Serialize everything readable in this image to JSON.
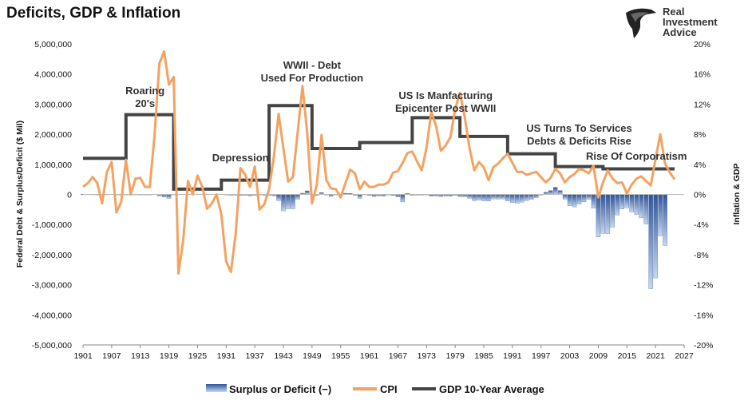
{
  "title": "Deficits, GDP & Inflation",
  "brand": {
    "lines": [
      "Real",
      "Investment",
      "Advice"
    ]
  },
  "chart_data": {
    "type": "combo",
    "ylabel_left": "Federal Debt & Surplus/Deficit ($ Mil)",
    "ylabel_right": "Inflation & GDP",
    "ylim_left": [
      -5000000,
      5000000
    ],
    "ylim_right": [
      -20,
      20
    ],
    "xlim": [
      1901,
      2027
    ],
    "x_ticks": [
      "1901",
      "1907",
      "1913",
      "1919",
      "1925",
      "1931",
      "1937",
      "1943",
      "1949",
      "1955",
      "1961",
      "1967",
      "1973",
      "1979",
      "1985",
      "1991",
      "1997",
      "2003",
      "2009",
      "2015",
      "2021",
      "2027"
    ],
    "y_left_ticks": [
      "5,000,000",
      "4,000,000",
      "3,000,000",
      "2,000,000",
      "1,000,000",
      "0",
      "-1,000,000",
      "-2,000,000",
      "-3,000,000",
      "-4,000,000",
      "-5,000,000"
    ],
    "y_right_ticks": [
      "20%",
      "16%",
      "12%",
      "8%",
      "4%",
      "0%",
      "-4%",
      "-8%",
      "-12%",
      "-16%",
      "-20%"
    ],
    "grid": false,
    "legend_position": "bottom",
    "series": [
      {
        "name": "Surplus or Deficit (−)",
        "kind": "bar",
        "axis": "left",
        "color": "#4a6fa5",
        "points": [
          [
            1901,
            5000
          ],
          [
            1902,
            5000
          ],
          [
            1903,
            4000
          ],
          [
            1904,
            -5000
          ],
          [
            1905,
            -2000
          ],
          [
            1906,
            2000
          ],
          [
            1907,
            8000
          ],
          [
            1908,
            -6000
          ],
          [
            1909,
            -9000
          ],
          [
            1910,
            -2000
          ],
          [
            1911,
            2000
          ],
          [
            1912,
            2000
          ],
          [
            1913,
            -1000
          ],
          [
            1914,
            -1000
          ],
          [
            1915,
            -6000
          ],
          [
            1916,
            5000
          ],
          [
            1917,
            -50000
          ],
          [
            1918,
            -90000
          ],
          [
            1919,
            -130000
          ],
          [
            1920,
            3000
          ],
          [
            1921,
            5000
          ],
          [
            1922,
            7000
          ],
          [
            1923,
            7000
          ],
          [
            1924,
            9000
          ],
          [
            1925,
            7000
          ],
          [
            1926,
            9000
          ],
          [
            1927,
            12000
          ],
          [
            1928,
            9000
          ],
          [
            1929,
            7000
          ],
          [
            1930,
            7000
          ],
          [
            1931,
            -5000
          ],
          [
            1932,
            -27000
          ],
          [
            1933,
            -26000
          ],
          [
            1934,
            -36000
          ],
          [
            1935,
            -28000
          ],
          [
            1936,
            -44000
          ],
          [
            1937,
            -28000
          ],
          [
            1938,
            -1000
          ],
          [
            1939,
            -28000
          ],
          [
            1940,
            -29000
          ],
          [
            1941,
            -49000
          ],
          [
            1942,
            -205000
          ],
          [
            1943,
            -546000
          ],
          [
            1944,
            -477000
          ],
          [
            1945,
            -477000
          ],
          [
            1946,
            -159000
          ],
          [
            1947,
            40000
          ],
          [
            1948,
            118000
          ],
          [
            1949,
            6000
          ],
          [
            1950,
            -31000
          ],
          [
            1951,
            61000
          ],
          [
            1952,
            -15000
          ],
          [
            1953,
            -65000
          ],
          [
            1954,
            -12000
          ],
          [
            1955,
            -30000
          ],
          [
            1956,
            39000
          ],
          [
            1957,
            34000
          ],
          [
            1958,
            -28000
          ],
          [
            1959,
            -128000
          ],
          [
            1960,
            3000
          ],
          [
            1961,
            -33000
          ],
          [
            1962,
            -71000
          ],
          [
            1963,
            -48000
          ],
          [
            1964,
            -59000
          ],
          [
            1965,
            -14000
          ],
          [
            1966,
            -37000
          ],
          [
            1967,
            -86000
          ],
          [
            1968,
            -250000
          ],
          [
            1969,
            32000
          ],
          [
            1970,
            -28000
          ],
          [
            1971,
            -23000
          ],
          [
            1972,
            -23000
          ],
          [
            1973,
            -14000
          ],
          [
            1974,
            -60000
          ],
          [
            1975,
            -53000
          ],
          [
            1976,
            -73000
          ],
          [
            1977,
            -54000
          ],
          [
            1978,
            -59000
          ],
          [
            1979,
            -30000
          ],
          [
            1980,
            -74000
          ],
          [
            1981,
            -79000
          ],
          [
            1982,
            -128000
          ],
          [
            1983,
            -208000
          ],
          [
            1984,
            -185000
          ],
          [
            1985,
            -212000
          ],
          [
            1986,
            -221000
          ],
          [
            1987,
            -150000
          ],
          [
            1988,
            -155000
          ],
          [
            1989,
            -153000
          ],
          [
            1990,
            -221000
          ],
          [
            1991,
            -269000
          ],
          [
            1992,
            -290000
          ],
          [
            1993,
            -255000
          ],
          [
            1994,
            -203000
          ],
          [
            1995,
            -164000
          ],
          [
            1996,
            -107000
          ],
          [
            1997,
            -22000
          ],
          [
            1998,
            69000
          ],
          [
            1999,
            126000
          ],
          [
            2000,
            236000
          ],
          [
            2001,
            128000
          ],
          [
            2002,
            -158000
          ],
          [
            2003,
            -378000
          ],
          [
            2004,
            -413000
          ],
          [
            2005,
            -318000
          ],
          [
            2006,
            -248000
          ],
          [
            2007,
            -161000
          ],
          [
            2008,
            -459000
          ],
          [
            2009,
            -1413000
          ],
          [
            2010,
            -1294000
          ],
          [
            2011,
            -1300000
          ],
          [
            2012,
            -1087000
          ],
          [
            2013,
            -680000
          ],
          [
            2014,
            -485000
          ],
          [
            2015,
            -442000
          ],
          [
            2016,
            -585000
          ],
          [
            2017,
            -665000
          ],
          [
            2018,
            -779000
          ],
          [
            2019,
            -984000
          ],
          [
            2020,
            -3132000
          ],
          [
            2021,
            -2775000
          ],
          [
            2022,
            -1375000
          ],
          [
            2023,
            -1695000
          ]
        ]
      },
      {
        "name": "CPI",
        "kind": "line",
        "axis": "right",
        "color": "#f4a261",
        "points": [
          [
            1901,
            1.0
          ],
          [
            1902,
            1.5
          ],
          [
            1903,
            2.3
          ],
          [
            1904,
            1.5
          ],
          [
            1905,
            -1.2
          ],
          [
            1906,
            3.0
          ],
          [
            1907,
            4.3
          ],
          [
            1908,
            -2.4
          ],
          [
            1909,
            -1.0
          ],
          [
            1910,
            4.6
          ],
          [
            1911,
            0.0
          ],
          [
            1912,
            2.1
          ],
          [
            1913,
            2.2
          ],
          [
            1914,
            1.0
          ],
          [
            1915,
            1.0
          ],
          [
            1916,
            7.9
          ],
          [
            1917,
            17.4
          ],
          [
            1918,
            19.0
          ],
          [
            1919,
            14.6
          ],
          [
            1920,
            15.6
          ],
          [
            1921,
            -10.5
          ],
          [
            1922,
            -6.1
          ],
          [
            1923,
            1.8
          ],
          [
            1924,
            0.0
          ],
          [
            1925,
            2.5
          ],
          [
            1926,
            1.0
          ],
          [
            1927,
            -1.9
          ],
          [
            1928,
            -1.2
          ],
          [
            1929,
            0.0
          ],
          [
            1930,
            -2.7
          ],
          [
            1931,
            -8.9
          ],
          [
            1932,
            -10.3
          ],
          [
            1933,
            -5.2
          ],
          [
            1934,
            3.5
          ],
          [
            1935,
            2.6
          ],
          [
            1936,
            1.0
          ],
          [
            1937,
            3.7
          ],
          [
            1938,
            -2.0
          ],
          [
            1939,
            -1.3
          ],
          [
            1940,
            0.7
          ],
          [
            1941,
            5.0
          ],
          [
            1942,
            10.7
          ],
          [
            1943,
            6.1
          ],
          [
            1944,
            1.7
          ],
          [
            1945,
            2.3
          ],
          [
            1946,
            8.3
          ],
          [
            1947,
            14.4
          ],
          [
            1948,
            8.1
          ],
          [
            1949,
            -1.2
          ],
          [
            1950,
            1.3
          ],
          [
            1951,
            7.9
          ],
          [
            1952,
            1.9
          ],
          [
            1953,
            0.8
          ],
          [
            1954,
            0.7
          ],
          [
            1955,
            -0.4
          ],
          [
            1956,
            1.5
          ],
          [
            1957,
            3.3
          ],
          [
            1958,
            2.8
          ],
          [
            1959,
            0.7
          ],
          [
            1960,
            1.7
          ],
          [
            1961,
            1.0
          ],
          [
            1962,
            1.0
          ],
          [
            1963,
            1.3
          ],
          [
            1964,
            1.3
          ],
          [
            1965,
            1.6
          ],
          [
            1966,
            2.9
          ],
          [
            1967,
            3.1
          ],
          [
            1968,
            4.2
          ],
          [
            1969,
            5.5
          ],
          [
            1970,
            5.7
          ],
          [
            1971,
            4.4
          ],
          [
            1972,
            3.2
          ],
          [
            1973,
            6.2
          ],
          [
            1974,
            11.0
          ],
          [
            1975,
            9.1
          ],
          [
            1976,
            5.8
          ],
          [
            1977,
            6.5
          ],
          [
            1978,
            7.6
          ],
          [
            1979,
            11.3
          ],
          [
            1980,
            13.5
          ],
          [
            1981,
            10.3
          ],
          [
            1982,
            6.2
          ],
          [
            1983,
            3.2
          ],
          [
            1984,
            4.3
          ],
          [
            1985,
            3.6
          ],
          [
            1986,
            1.9
          ],
          [
            1987,
            3.6
          ],
          [
            1988,
            4.1
          ],
          [
            1989,
            4.8
          ],
          [
            1990,
            5.4
          ],
          [
            1991,
            4.2
          ],
          [
            1992,
            3.0
          ],
          [
            1993,
            3.0
          ],
          [
            1994,
            2.6
          ],
          [
            1995,
            2.8
          ],
          [
            1996,
            3.0
          ],
          [
            1997,
            2.3
          ],
          [
            1998,
            1.6
          ],
          [
            1999,
            2.2
          ],
          [
            2000,
            3.4
          ],
          [
            2001,
            2.8
          ],
          [
            2002,
            1.6
          ],
          [
            2003,
            2.3
          ],
          [
            2004,
            2.7
          ],
          [
            2005,
            3.4
          ],
          [
            2006,
            3.2
          ],
          [
            2007,
            2.8
          ],
          [
            2008,
            3.8
          ],
          [
            2009,
            -0.4
          ],
          [
            2010,
            1.6
          ],
          [
            2011,
            3.2
          ],
          [
            2012,
            2.1
          ],
          [
            2013,
            1.5
          ],
          [
            2014,
            1.6
          ],
          [
            2015,
            0.1
          ],
          [
            2016,
            1.3
          ],
          [
            2017,
            2.1
          ],
          [
            2018,
            2.4
          ],
          [
            2019,
            1.8
          ],
          [
            2020,
            1.2
          ],
          [
            2021,
            4.7
          ],
          [
            2022,
            8.0
          ],
          [
            2023,
            4.1
          ],
          [
            2024,
            2.9
          ],
          [
            2025,
            2.0
          ]
        ]
      },
      {
        "name": "GDP 10-Year Average",
        "kind": "line",
        "axis": "right",
        "color": "#444444",
        "points": [
          [
            1901,
            4.8
          ],
          [
            1910,
            4.8
          ],
          [
            1910,
            10.6
          ],
          [
            1920,
            10.6
          ],
          [
            1920,
            0.7
          ],
          [
            1930,
            0.7
          ],
          [
            1930,
            1.9
          ],
          [
            1940,
            1.9
          ],
          [
            1940,
            11.8
          ],
          [
            1949,
            11.8
          ],
          [
            1949,
            6.1
          ],
          [
            1959,
            6.1
          ],
          [
            1959,
            6.9
          ],
          [
            1970,
            6.9
          ],
          [
            1970,
            10.2
          ],
          [
            1980,
            10.2
          ],
          [
            1980,
            7.7
          ],
          [
            1990,
            7.7
          ],
          [
            1990,
            5.4
          ],
          [
            2000,
            5.4
          ],
          [
            2000,
            3.7
          ],
          [
            2010,
            3.7
          ],
          [
            2010,
            3.4
          ],
          [
            2025,
            3.4
          ]
        ]
      }
    ],
    "annotations": [
      {
        "x": 1914,
        "lines": [
          "Roaring",
          "20's"
        ]
      },
      {
        "x": 1934,
        "lines": [
          "Depression"
        ]
      },
      {
        "x": 1949,
        "lines": [
          "WWII - Debt",
          "Used For Production"
        ]
      },
      {
        "x": 1977,
        "lines": [
          "US Is Manfacturing",
          "Epicenter Post WWII"
        ]
      },
      {
        "x": 2005,
        "lines": [
          "US Turns To Services",
          "Debts & Deficits Rise"
        ]
      },
      {
        "x": 2017,
        "lines": [
          "Rise Of Corporatism"
        ]
      }
    ]
  }
}
